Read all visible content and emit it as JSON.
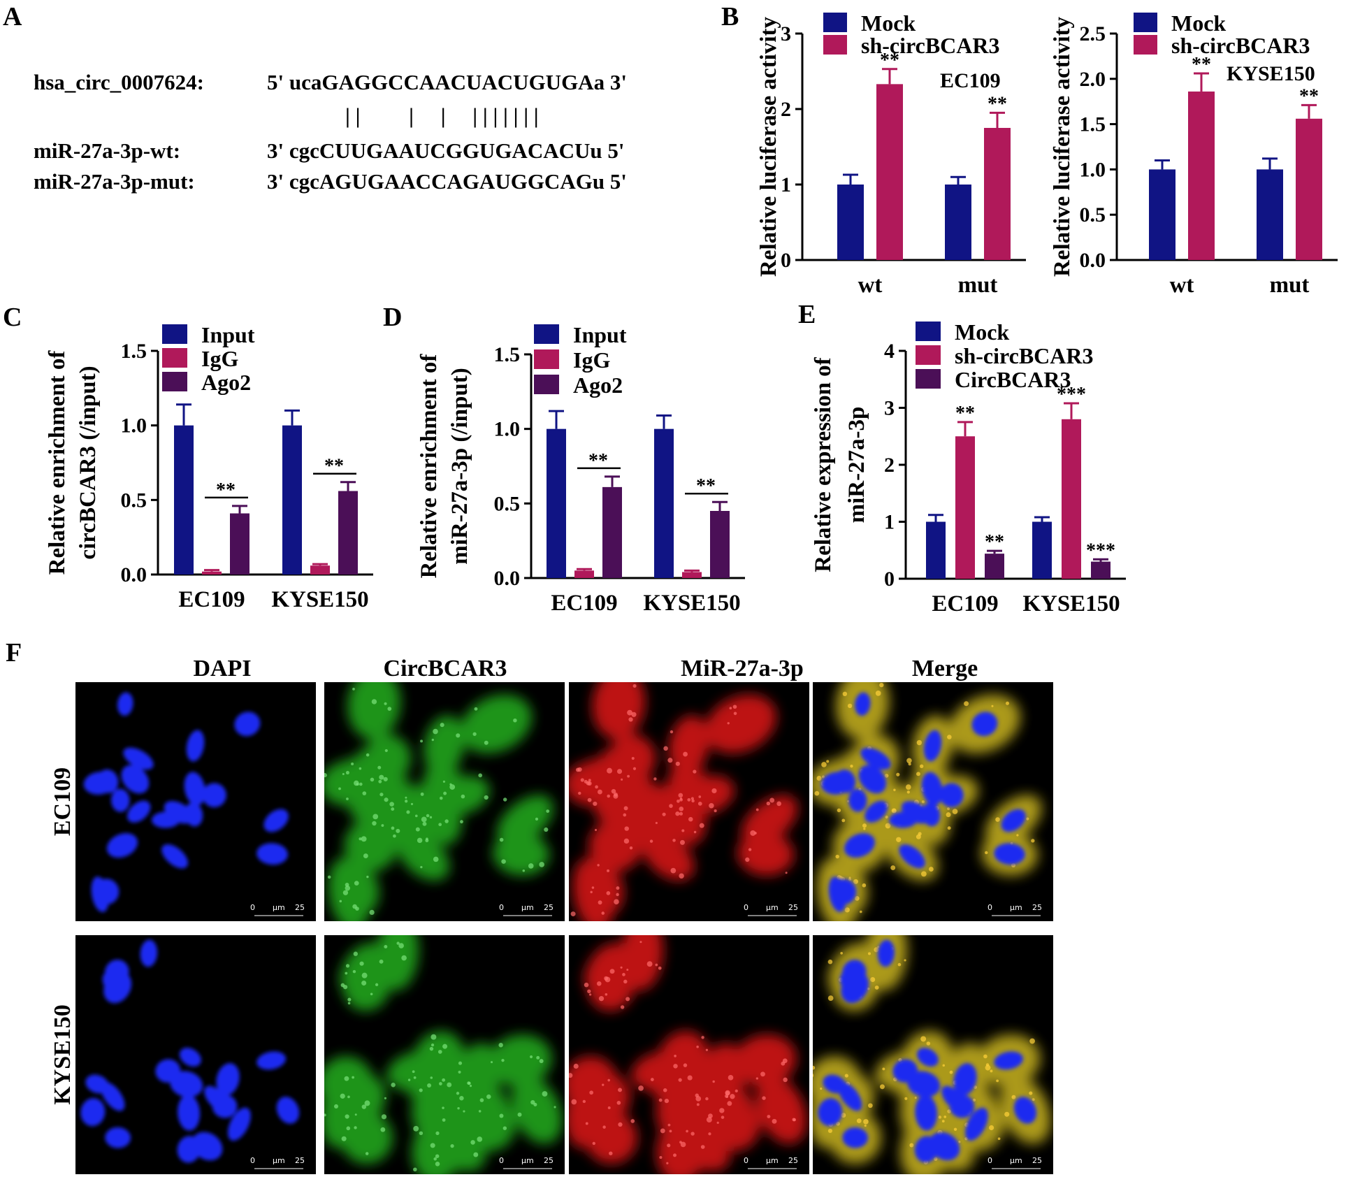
{
  "colors": {
    "blue": "#101484",
    "magenta": "#b0195a",
    "purple": "#4b0f57",
    "black": "#000000"
  },
  "panel_labels": {
    "a": "A",
    "b": "B",
    "c": "C",
    "d": "D",
    "e": "E",
    "f": "F"
  },
  "sequence": {
    "circ_label": "hsa_circ_0007624:",
    "circ_seq": "5' ucaGAGGCCAACUACUGUGAa 3'",
    "pairing": "| |         |     |     | | | | | | |",
    "wt_label": "miR-27a-3p-wt:",
    "wt_seq": "3' cgcCUUGAAUCGGUGACACUu 5'",
    "mut_label": "miR-27a-3p-mut:",
    "mut_seq": "3' cgcAGUGAACCAGAUGGCAGu 5'"
  },
  "chart_data": [
    {
      "id": "B1",
      "type": "bar",
      "ylabel": "Relative luciferase activity",
      "annotation": "EC109",
      "categories": [
        "wt",
        "mut"
      ],
      "ylim": [
        0,
        3
      ],
      "yticks": [
        "0",
        "1",
        "2",
        "3"
      ],
      "series": [
        {
          "name": "Mock",
          "color_key": "blue",
          "values": [
            1.0,
            1.0
          ],
          "errors": [
            0.13,
            0.1
          ]
        },
        {
          "name": "sh-circBCAR3",
          "color_key": "magenta",
          "values": [
            2.33,
            1.75
          ],
          "errors": [
            0.2,
            0.2
          ]
        }
      ],
      "stars": [
        {
          "cat": 0,
          "series": 1,
          "text": "**"
        },
        {
          "cat": 1,
          "series": 1,
          "text": "**"
        }
      ]
    },
    {
      "id": "B2",
      "type": "bar",
      "ylabel": "Relative luciferase activity",
      "annotation": "KYSE150",
      "categories": [
        "wt",
        "mut"
      ],
      "ylim": [
        0,
        2.5
      ],
      "yticks": [
        "0.0",
        "0.5",
        "1.0",
        "1.5",
        "2.0",
        "2.5"
      ],
      "series": [
        {
          "name": "Mock",
          "color_key": "blue",
          "values": [
            1.0,
            1.0
          ],
          "errors": [
            0.1,
            0.12
          ]
        },
        {
          "name": "sh-circBCAR3",
          "color_key": "magenta",
          "values": [
            1.86,
            1.56
          ],
          "errors": [
            0.2,
            0.15
          ]
        }
      ],
      "stars": [
        {
          "cat": 0,
          "series": 1,
          "text": "**"
        },
        {
          "cat": 1,
          "series": 1,
          "text": "**"
        }
      ]
    },
    {
      "id": "C",
      "type": "bar",
      "ylabel": [
        "Relative enrichment of",
        "circBCAR3 (/input)"
      ],
      "categories": [
        "EC109",
        "KYSE150"
      ],
      "ylim": [
        0,
        1.5
      ],
      "yticks": [
        "0.0",
        "0.5",
        "1.0",
        "1.5"
      ],
      "series": [
        {
          "name": "Input",
          "color_key": "blue",
          "values": [
            1.0,
            1.0
          ],
          "errors": [
            0.14,
            0.1
          ]
        },
        {
          "name": "IgG",
          "color_key": "magenta",
          "values": [
            0.02,
            0.06
          ],
          "errors": [
            0.01,
            0.01
          ]
        },
        {
          "name": "Ago2",
          "color_key": "purple",
          "values": [
            0.41,
            0.56
          ],
          "errors": [
            0.05,
            0.06
          ]
        }
      ],
      "stars": [
        {
          "cat": 0,
          "series": 2,
          "text": "**",
          "bracket": [
            1,
            2
          ]
        },
        {
          "cat": 1,
          "series": 2,
          "text": "**",
          "bracket": [
            1,
            2
          ]
        }
      ]
    },
    {
      "id": "D",
      "type": "bar",
      "ylabel": [
        "Relative enrichment of",
        "miR-27a-3p (/input)"
      ],
      "categories": [
        "EC109",
        "KYSE150"
      ],
      "ylim": [
        0,
        1.5
      ],
      "yticks": [
        "0.0",
        "0.5",
        "1.0",
        "1.5"
      ],
      "series": [
        {
          "name": "Input",
          "color_key": "blue",
          "values": [
            1.0,
            1.0
          ],
          "errors": [
            0.12,
            0.09
          ]
        },
        {
          "name": "IgG",
          "color_key": "magenta",
          "values": [
            0.05,
            0.04
          ],
          "errors": [
            0.01,
            0.01
          ]
        },
        {
          "name": "Ago2",
          "color_key": "purple",
          "values": [
            0.61,
            0.45
          ],
          "errors": [
            0.07,
            0.06
          ]
        }
      ],
      "stars": [
        {
          "cat": 0,
          "series": 2,
          "text": "**",
          "bracket": [
            1,
            2
          ]
        },
        {
          "cat": 1,
          "series": 2,
          "text": "**",
          "bracket": [
            1,
            2
          ]
        }
      ]
    },
    {
      "id": "E",
      "type": "bar",
      "ylabel": [
        "Relative expression of",
        "miR-27a-3p"
      ],
      "categories": [
        "EC109",
        "KYSE150"
      ],
      "ylim": [
        0,
        4
      ],
      "yticks": [
        "0",
        "1",
        "2",
        "3",
        "4"
      ],
      "series": [
        {
          "name": "Mock",
          "color_key": "blue",
          "values": [
            1.0,
            1.0
          ],
          "errors": [
            0.12,
            0.08
          ]
        },
        {
          "name": "sh-circBCAR3",
          "color_key": "magenta",
          "values": [
            2.5,
            2.8
          ],
          "errors": [
            0.25,
            0.28
          ]
        },
        {
          "name": "CircBCAR3",
          "color_key": "purple",
          "values": [
            0.44,
            0.3
          ],
          "errors": [
            0.05,
            0.04
          ]
        }
      ],
      "stars": [
        {
          "cat": 0,
          "series": 1,
          "text": "**"
        },
        {
          "cat": 1,
          "series": 1,
          "text": "***"
        },
        {
          "cat": 0,
          "series": 2,
          "text": "**"
        },
        {
          "cat": 1,
          "series": 2,
          "text": "***"
        }
      ]
    }
  ],
  "micrographs": {
    "columns": [
      "DAPI",
      "CircBCAR3",
      "MiR-27a-3p",
      "Merge"
    ],
    "rows": [
      "EC109",
      "KYSE150"
    ],
    "scale_bar": {
      "zero": "0",
      "unit": "μm",
      "value": "25"
    }
  }
}
